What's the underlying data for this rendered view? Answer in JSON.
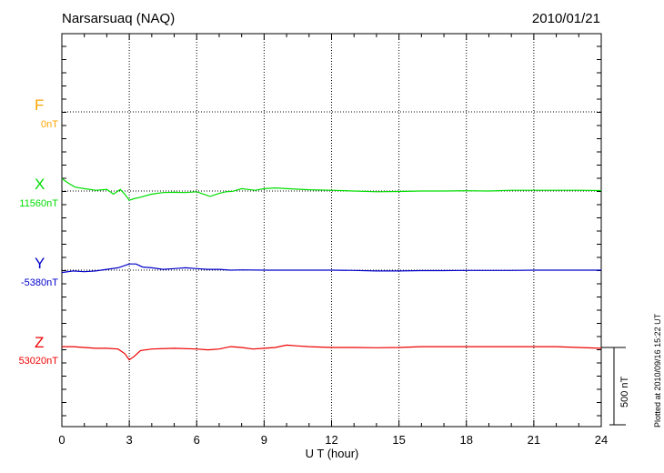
{
  "header": {
    "station": "Narsarsuaq (NAQ)",
    "date": "2010/01/21"
  },
  "components": [
    {
      "name": "F",
      "baseline": "0nT",
      "color": "#ffa500"
    },
    {
      "name": "X",
      "baseline": "11560nT",
      "color": "#00dd00"
    },
    {
      "name": "Y",
      "baseline": "-5380nT",
      "color": "#0000cc"
    },
    {
      "name": "Z",
      "baseline": "53020nT",
      "color": "#ee0000"
    }
  ],
  "scale_label": "500 nT",
  "plotted_note": "Plotted at 2010/09/16 15:22 UT",
  "chart_data": {
    "type": "line",
    "title": "Narsarsuaq (NAQ)",
    "xlabel": "U T (hour)",
    "xlim": [
      0,
      24
    ],
    "xticks": [
      0,
      3,
      6,
      9,
      12,
      15,
      18,
      21,
      24
    ],
    "grid": true,
    "scale_bar_nT": 500,
    "series": [
      {
        "name": "X",
        "baseline": "11560nT",
        "color": "#00dd00",
        "x": [
          0,
          0.3,
          0.6,
          1,
          1.5,
          2,
          2.3,
          2.6,
          2.8,
          3,
          3.2,
          3.5,
          4,
          4.5,
          5,
          5.5,
          6,
          6.3,
          6.6,
          6.8,
          7,
          7.3,
          7.6,
          8,
          8.3,
          8.6,
          9,
          9.5,
          10,
          11,
          12,
          13,
          14,
          15,
          16,
          17,
          18,
          19,
          20,
          21,
          22,
          23,
          24
        ],
        "y": [
          80,
          50,
          25,
          15,
          5,
          10,
          -20,
          10,
          -20,
          -60,
          -50,
          -40,
          -20,
          -10,
          -8,
          -10,
          -5,
          -20,
          -35,
          -25,
          -15,
          -5,
          -2,
          15,
          10,
          5,
          15,
          20,
          15,
          8,
          5,
          0,
          -5,
          -3,
          0,
          0,
          2,
          0,
          5,
          5,
          5,
          5,
          3
        ]
      },
      {
        "name": "Y",
        "baseline": "-5380nT",
        "color": "#0000cc",
        "x": [
          0,
          0.5,
          1,
          1.5,
          2,
          2.5,
          3,
          3.3,
          3.6,
          4,
          4.5,
          5,
          5.5,
          6,
          6.5,
          7,
          7.5,
          8,
          9,
          10,
          11,
          12,
          13,
          14,
          15,
          16,
          17,
          18,
          19,
          20,
          21,
          22,
          23,
          24
        ],
        "y": [
          -15,
          -5,
          -10,
          -5,
          5,
          15,
          40,
          40,
          20,
          15,
          5,
          10,
          15,
          10,
          5,
          5,
          0,
          2,
          0,
          0,
          0,
          0,
          -2,
          -5,
          -5,
          -3,
          -3,
          -2,
          -2,
          -2,
          0,
          0,
          0,
          0
        ]
      },
      {
        "name": "Z",
        "baseline": "53020nT",
        "color": "#ee0000",
        "x": [
          0,
          0.5,
          1,
          1.5,
          2,
          2.5,
          2.8,
          3,
          3.2,
          3.5,
          4,
          5,
          6,
          6.5,
          7,
          7.5,
          8,
          8.5,
          9,
          9.5,
          10,
          10.5,
          11,
          12,
          13,
          14,
          15,
          16,
          17,
          18,
          19,
          20,
          21,
          22,
          23,
          24
        ],
        "y": [
          5,
          5,
          0,
          -5,
          -5,
          -10,
          -40,
          -80,
          -60,
          -20,
          -10,
          -5,
          -10,
          -15,
          -10,
          5,
          0,
          -10,
          -5,
          0,
          15,
          10,
          5,
          0,
          0,
          -2,
          0,
          5,
          5,
          5,
          5,
          5,
          5,
          5,
          0,
          -5
        ]
      }
    ]
  }
}
